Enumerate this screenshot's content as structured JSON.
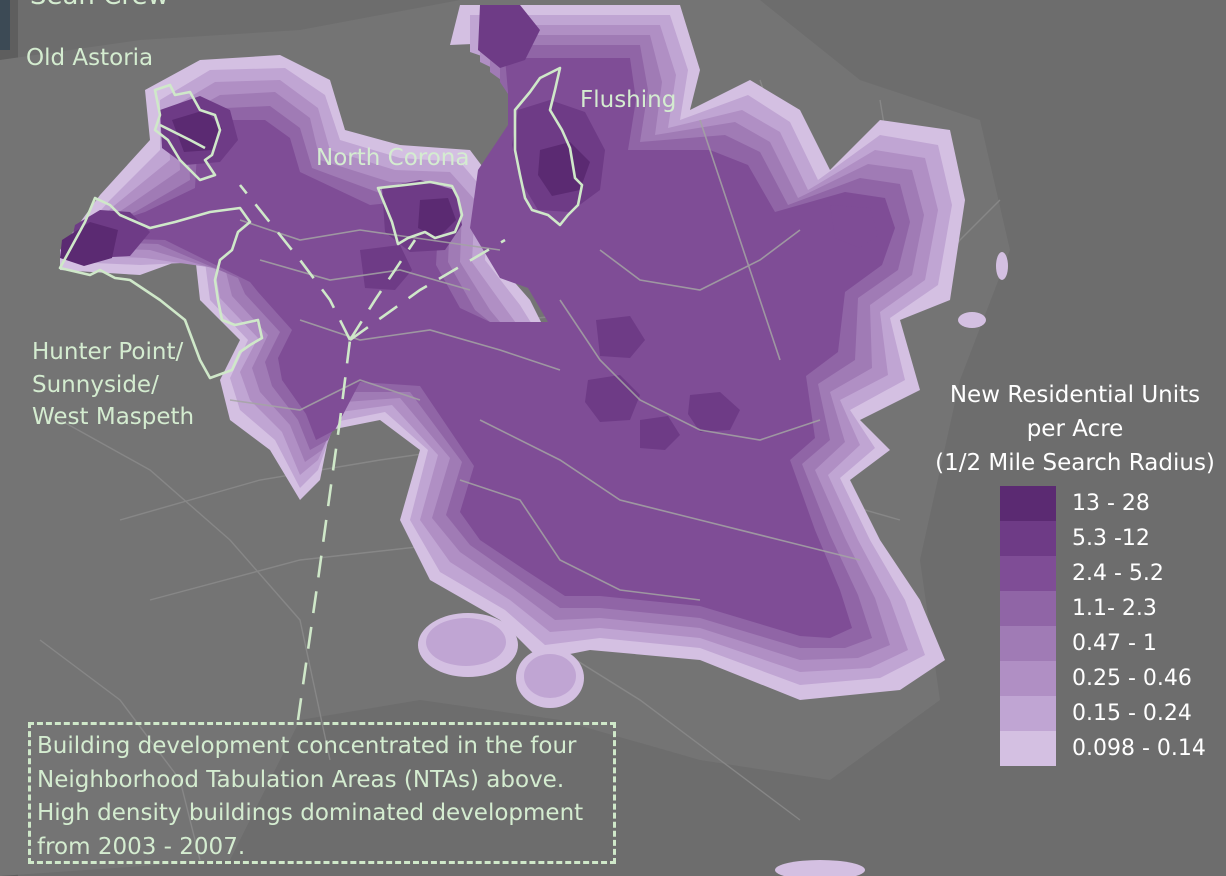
{
  "map": {
    "author_partial": "Sean Crew",
    "neighborhood_labels": [
      {
        "id": "old-astoria",
        "lines": [
          "Old Astoria"
        ]
      },
      {
        "id": "flushing",
        "lines": [
          "Flushing"
        ]
      },
      {
        "id": "north-corona",
        "lines": [
          "North Corona"
        ]
      },
      {
        "id": "hunter-point",
        "lines": [
          "Hunter Point/",
          "Sunnyside/",
          "West Maspeth"
        ]
      }
    ],
    "background_color": "#6d6d6d",
    "outline_color": "#cfe8c9"
  },
  "legend": {
    "title_lines": [
      "New Residential Units",
      "per Acre",
      "(1/2 Mile Search Radius)"
    ],
    "classes": [
      {
        "label": "13 - 28",
        "color": "#5b2a72"
      },
      {
        "label": "5.3 -12",
        "color": "#6e3b86"
      },
      {
        "label": "2.4 - 5.2",
        "color": "#7f4d96"
      },
      {
        "label": "1.1- 2.3",
        "color": "#9065a6"
      },
      {
        "label": "0.47 - 1",
        "color": "#a07bb5"
      },
      {
        "label": "0.25 - 0.46",
        "color": "#b08fc4"
      },
      {
        "label": "0.15 - 0.24",
        "color": "#c0a5d3"
      },
      {
        "label": "0.098 - 0.14",
        "color": "#d4c0e2"
      }
    ]
  },
  "note": {
    "lines": [
      "Building development concentrated in the four",
      "Neighborhood Tabulation Areas (NTAs) above.",
      "High density buildings dominated development",
      "from 2003 - 2007."
    ]
  }
}
